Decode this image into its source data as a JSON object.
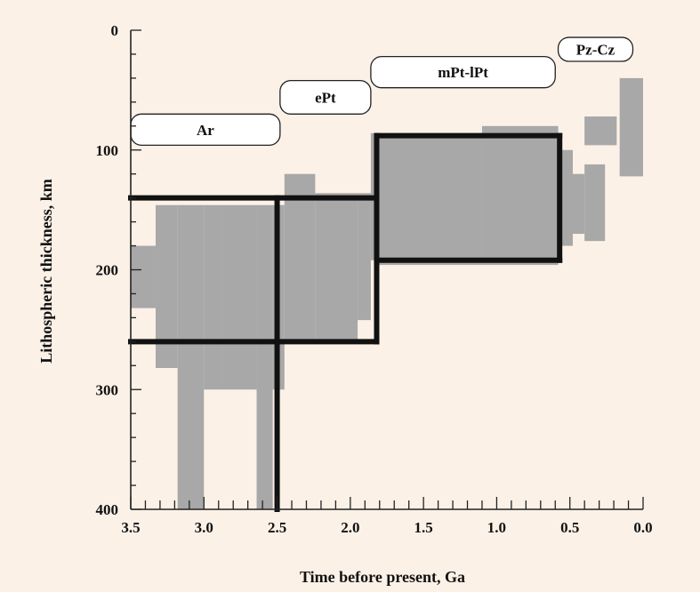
{
  "chart_data": {
    "type": "area",
    "xlabel": "Time before present, Ga",
    "ylabel": "Lithospheric thickness, km",
    "xlim": [
      3.5,
      0.0
    ],
    "ylim": [
      0,
      400
    ],
    "x_reversed": true,
    "y_reversed": true,
    "x_ticks": [
      3.5,
      3.0,
      2.5,
      2.0,
      1.5,
      1.0,
      0.5,
      0.0
    ],
    "x_tick_labels": [
      "3.5",
      "3.0",
      "2.5",
      "2.0",
      "1.5",
      "1.0",
      "0.5",
      "0.0"
    ],
    "y_ticks": [
      0,
      100,
      200,
      300,
      400
    ],
    "y_tick_labels": [
      "0",
      "100",
      "200",
      "300",
      "400"
    ],
    "grid": false,
    "fill_color": "#a8a8a8",
    "line_color": "#111111",
    "data_regions": [
      {
        "x": [
          3.5,
          3.33
        ],
        "y": [
          180,
          232
        ]
      },
      {
        "x": [
          3.33,
          3.18
        ],
        "y": [
          146,
          282
        ]
      },
      {
        "x": [
          3.18,
          3.0
        ],
        "y": [
          146,
          400
        ]
      },
      {
        "x": [
          3.0,
          2.88
        ],
        "y": [
          146,
          300
        ]
      },
      {
        "x": [
          2.88,
          2.64
        ],
        "y": [
          146,
          300
        ]
      },
      {
        "x": [
          2.64,
          2.53
        ],
        "y": [
          146,
          400
        ]
      },
      {
        "x": [
          2.53,
          2.45
        ],
        "y": [
          146,
          300
        ]
      },
      {
        "x": [
          2.45,
          2.24
        ],
        "y": [
          120,
          262
        ]
      },
      {
        "x": [
          2.24,
          1.95
        ],
        "y": [
          136,
          258
        ]
      },
      {
        "x": [
          1.95,
          1.86
        ],
        "y": [
          136,
          242
        ]
      },
      {
        "x": [
          1.86,
          1.82
        ],
        "y": [
          86,
          192
        ]
      },
      {
        "x": [
          1.82,
          1.1
        ],
        "y": [
          86,
          196
        ]
      },
      {
        "x": [
          1.1,
          0.58
        ],
        "y": [
          80,
          196
        ]
      },
      {
        "x": [
          0.58,
          0.48
        ],
        "y": [
          100,
          180
        ]
      },
      {
        "x": [
          0.48,
          0.4
        ],
        "y": [
          120,
          170
        ]
      },
      {
        "x": [
          0.4,
          0.26
        ],
        "y": [
          112,
          176
        ]
      },
      {
        "x": [
          0.4,
          0.18
        ],
        "y": [
          72,
          96
        ]
      },
      {
        "x": [
          0.16,
          0.0
        ],
        "y": [
          40,
          122
        ]
      }
    ],
    "envelope_lines": [
      {
        "x": [
          3.5,
          1.82
        ],
        "y": [
          140,
          140
        ]
      },
      {
        "x": [
          3.5,
          1.82
        ],
        "y": [
          260,
          260
        ]
      },
      {
        "x": [
          2.5,
          2.5
        ],
        "y": [
          140,
          400
        ]
      },
      {
        "x": [
          1.82,
          1.82
        ],
        "y": [
          88,
          260
        ]
      },
      {
        "x": [
          1.82,
          0.57
        ],
        "y": [
          88,
          88
        ]
      },
      {
        "x": [
          1.82,
          0.57
        ],
        "y": [
          192,
          192
        ]
      },
      {
        "x": [
          0.57,
          0.57
        ],
        "y": [
          88,
          192
        ]
      }
    ],
    "annotations": [
      {
        "label": "Ar",
        "x": [
          3.5,
          2.48
        ],
        "y": [
          70,
          96
        ]
      },
      {
        "label": "ePt",
        "x": [
          2.48,
          1.86
        ],
        "y": [
          42,
          70
        ]
      },
      {
        "label": "mPt-lPt",
        "x": [
          1.86,
          0.6
        ],
        "y": [
          22,
          48
        ]
      },
      {
        "label": "Pz-Cz",
        "x": [
          0.58,
          0.07
        ],
        "y": [
          6,
          26
        ]
      }
    ]
  }
}
